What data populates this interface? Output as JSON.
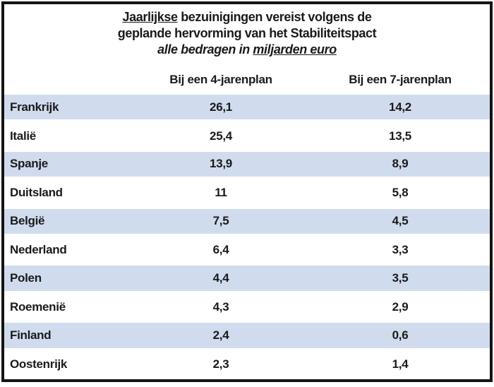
{
  "title": {
    "line1_underlined": "Jaarlijkse",
    "line1_rest": " bezuinigingen vereist volgens de",
    "line2": "geplande hervorming van het Stabiliteitspact",
    "line3_prefix": "alle bedragen in ",
    "line3_underlined": "miljarden euro"
  },
  "table": {
    "headers": {
      "plan4": "Bij een 4-jarenplan",
      "plan7": "Bij een 7-jarenplan"
    },
    "rows": [
      {
        "country": "Frankrijk",
        "plan4": "26,1",
        "plan7": "14,2"
      },
      {
        "country": "Italië",
        "plan4": "25,4",
        "plan7": "13,5"
      },
      {
        "country": "Spanje",
        "plan4": "13,9",
        "plan7": "8,9"
      },
      {
        "country": "Duitsland",
        "plan4": "11",
        "plan7": "5,8"
      },
      {
        "country": "België",
        "plan4": "7,5",
        "plan7": "4,5"
      },
      {
        "country": "Nederland",
        "plan4": "6,4",
        "plan7": "3,3"
      },
      {
        "country": "Polen",
        "plan4": "4,4",
        "plan7": "3,5"
      },
      {
        "country": "Roemenië",
        "plan4": "4,3",
        "plan7": "2,9"
      },
      {
        "country": "Finland",
        "plan4": "2,4",
        "plan7": "0,6"
      },
      {
        "country": "Oostenrijk",
        "plan4": "2,3",
        "plan7": "1,4"
      }
    ]
  },
  "chart_data": {
    "type": "table",
    "title": "Jaarlijkse bezuinigingen vereist volgens de geplande hervorming van het Stabiliteitspact",
    "subtitle": "alle bedragen in miljarden euro",
    "categories": [
      "Frankrijk",
      "Italië",
      "Spanje",
      "Duitsland",
      "België",
      "Nederland",
      "Polen",
      "Roemenië",
      "Finland",
      "Oostenrijk"
    ],
    "series": [
      {
        "name": "Bij een 4-jarenplan",
        "values": [
          26.1,
          25.4,
          13.9,
          11,
          7.5,
          6.4,
          4.4,
          4.3,
          2.4,
          2.3
        ]
      },
      {
        "name": "Bij een 7-jarenplan",
        "values": [
          14.2,
          13.5,
          8.9,
          5.8,
          4.5,
          3.3,
          3.5,
          2.9,
          0.6,
          1.4
        ]
      }
    ]
  },
  "colors": {
    "row_shade": "#d0dcee",
    "border": "#141414",
    "text": "#1a1a1a"
  }
}
